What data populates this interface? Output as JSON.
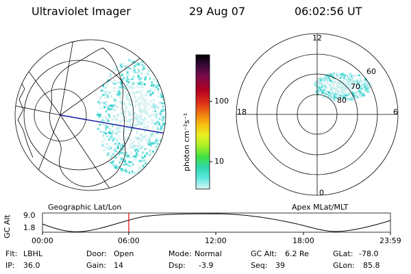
{
  "header": {
    "instrument": "Ultraviolet Imager",
    "date": "29 Aug 07",
    "time": "06:02:56 UT"
  },
  "colorbar": {
    "unit_label": "photon cm⁻²s⁻¹",
    "ticks": [
      "100",
      "10"
    ],
    "colors": [
      "#000000",
      "#3a0a3a",
      "#7a0c4a",
      "#b00020",
      "#e03018",
      "#f07a10",
      "#f8c010",
      "#e8f020",
      "#a8f028",
      "#40e040",
      "#30d8b0",
      "#60e8e0",
      "#b8f0f0"
    ]
  },
  "left_panel": {
    "caption": "Geographic Lat/Lon"
  },
  "right_panel": {
    "caption": "Apex MLat/MLT",
    "mlt_labels": [
      "12",
      "18",
      "6",
      "0"
    ],
    "lat_labels": [
      "60",
      "70",
      "80"
    ]
  },
  "altitude_plot": {
    "axis_label": "GC Alt",
    "y_ticks": [
      "9.0",
      "1.8"
    ],
    "x_ticks": [
      "00:00",
      "06:00",
      "12:00",
      "18:00",
      "23:59"
    ],
    "marker_color": "#e00000"
  },
  "info": {
    "row1": [
      {
        "key": "Flt:",
        "value": "LBHL"
      },
      {
        "key": "Door:",
        "value": "Open"
      },
      {
        "key": "Mode:",
        "value": "Normal"
      },
      {
        "key": "GC Alt:",
        "value": "6.2 Re"
      },
      {
        "key": "GLat:",
        "value": "-78.0"
      }
    ],
    "row2": [
      {
        "key": "IP:",
        "value": "36.0"
      },
      {
        "key": "Gain:",
        "value": "14"
      },
      {
        "key": "Dsp:",
        "value": "-3.9"
      },
      {
        "key": "Seq:",
        "value": "39"
      },
      {
        "key": "GLon:",
        "value": "85.8"
      }
    ]
  }
}
